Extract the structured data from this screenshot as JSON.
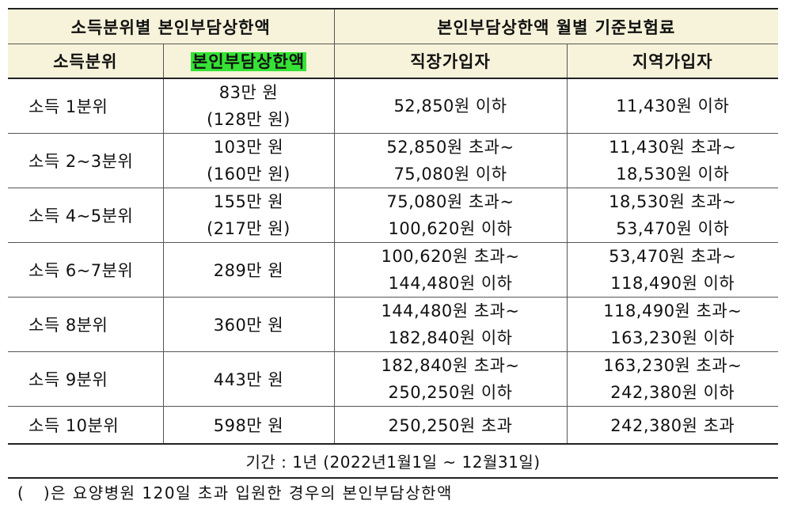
{
  "header": {
    "group_left": "소득분위별 본인부담상한액",
    "group_right": "본인부담상한액 월별 기준보험료",
    "col_quintile": "소득분위",
    "col_cap": "본인부담상한액",
    "col_workplace": "직장가입자",
    "col_regional": "지역가입자",
    "highlight_color": "#35e235",
    "header_bg": "#f7f3da"
  },
  "rows": [
    {
      "quintile": "소득 1분위",
      "cap": "83만 원",
      "cap_hospital": "(128만 원)",
      "workplace": [
        "52,850원 이하"
      ],
      "regional": [
        "11,430원 이하"
      ]
    },
    {
      "quintile": "소득 2~3분위",
      "cap": "103만 원",
      "cap_hospital": "(160만 원)",
      "workplace": [
        "52,850원 초과~",
        "75,080원 이하"
      ],
      "regional": [
        "11,430원 초과~",
        "18,530원 이하"
      ]
    },
    {
      "quintile": "소득 4~5분위",
      "cap": "155만 원",
      "cap_hospital": "(217만 원)",
      "workplace": [
        "75,080원 초과~",
        "100,620원 이하"
      ],
      "regional": [
        "18,530원 초과~",
        "53,470원 이하"
      ]
    },
    {
      "quintile": "소득 6~7분위",
      "cap": "289만 원",
      "workplace": [
        "100,620원 초과~",
        "144,480원 이하"
      ],
      "regional": [
        "53,470원 초과~",
        "118,490원 이하"
      ]
    },
    {
      "quintile": "소득 8분위",
      "cap": "360만 원",
      "workplace": [
        "144,480원 초과~",
        "182,840원 이하"
      ],
      "regional": [
        "118,490원 초과~",
        "163,230원 이하"
      ]
    },
    {
      "quintile": "소득 9분위",
      "cap": "443만 원",
      "workplace": [
        "182,840원 초과~",
        "250,250원 이하"
      ],
      "regional": [
        "163,230원 초과~",
        "242,380원 이하"
      ]
    },
    {
      "quintile": "소득 10분위",
      "cap": "598만 원",
      "workplace": [
        "250,250원 초과"
      ],
      "regional": [
        "242,380원 초과"
      ]
    }
  ],
  "period": "기간 : 1년 (2022년1월1일 ~ 12월31일)",
  "note": "(   )은 요양병원 120일 초과 입원한 경우의 본인부담상한액"
}
